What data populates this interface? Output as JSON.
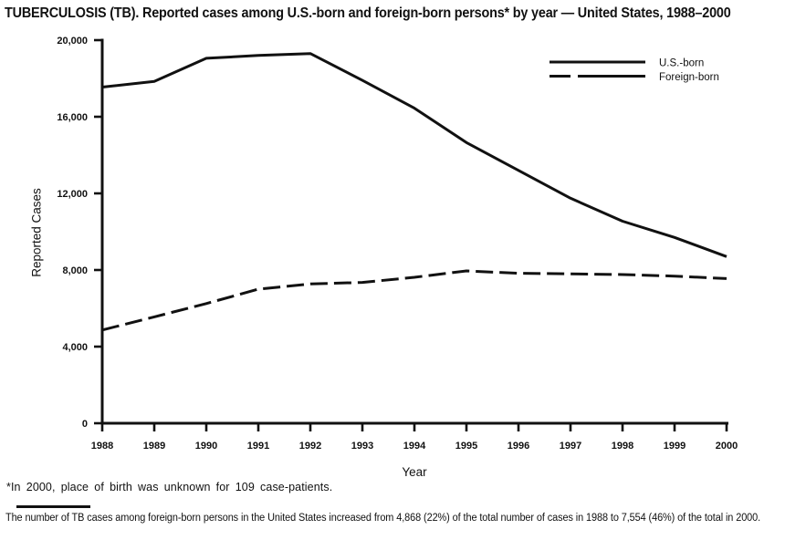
{
  "title": "TUBERCULOSIS (TB). Reported cases among U.S.-born and foreign-born persons* by year — United States, 1988–2000",
  "chart_data": {
    "type": "line",
    "x": [
      1988,
      1989,
      1990,
      1991,
      1992,
      1993,
      1994,
      1995,
      1996,
      1997,
      1998,
      1999,
      2000
    ],
    "series": [
      {
        "name": "U.S.-born",
        "style": "solid",
        "values": [
          17550,
          17850,
          19050,
          19200,
          19300,
          17900,
          16450,
          14650,
          13200,
          11750,
          10550,
          9700,
          8700
        ]
      },
      {
        "name": "Foreign-born",
        "style": "dashed",
        "values": [
          4868,
          5550,
          6250,
          7000,
          7270,
          7350,
          7620,
          7950,
          7830,
          7800,
          7760,
          7680,
          7554
        ]
      }
    ],
    "xlabel": "Year",
    "ylabel": "Reported Cases",
    "ylim": [
      0,
      20000
    ],
    "yticks": [
      0,
      4000,
      8000,
      12000,
      16000,
      20000
    ],
    "ytick_labels": [
      "0",
      "4,000",
      "8,000",
      "12,000",
      "16,000",
      "20,000"
    ],
    "grid": false,
    "legend_position": "top-right",
    "line_color": "#111111",
    "background_color": "#ffffff"
  },
  "footnotes": {
    "note1": "*In 2000, place of birth was unknown for 109 case-patients.",
    "note2": "The number of TB cases among foreign-born persons in the United States increased from 4,868 (22%) of the total number of cases in 1988 to 7,554 (46%) of the total in 2000."
  }
}
